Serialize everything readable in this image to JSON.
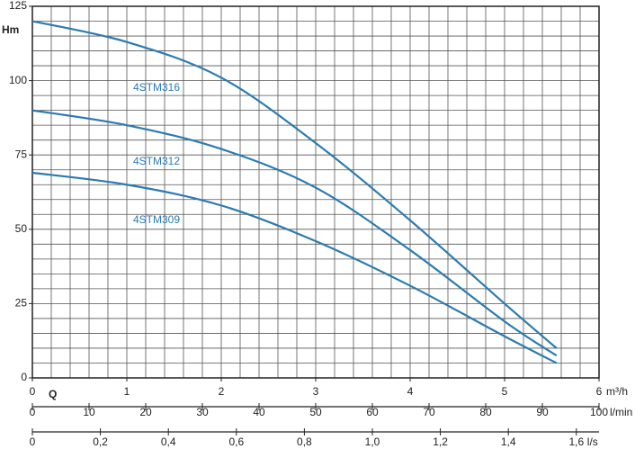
{
  "chart_data": {
    "type": "line",
    "y_label": "Hm",
    "x_label": "Q",
    "x_unit": "m³/h",
    "x": [
      0,
      1,
      2,
      3,
      4,
      5,
      5.55
    ],
    "xlim": [
      0,
      6
    ],
    "xticks": [
      0,
      1,
      2,
      3,
      4,
      5,
      6
    ],
    "ylim": [
      0,
      125
    ],
    "yticks": [
      0,
      25,
      50,
      75,
      100,
      125
    ],
    "grid": {
      "x_step": 0.2,
      "y_step": 5
    },
    "series": [
      {
        "name": "4STM316",
        "color": "#2c7bb0",
        "values": [
          120,
          113,
          101,
          79,
          53,
          25,
          10
        ]
      },
      {
        "name": "4STM312",
        "color": "#2c7bb0",
        "values": [
          90,
          85,
          77,
          64,
          43,
          19,
          7.5
        ]
      },
      {
        "name": "4STM309",
        "color": "#2c7bb0",
        "values": [
          69,
          65,
          58,
          46,
          31,
          14,
          5
        ]
      }
    ],
    "secondary_axes": [
      {
        "unit": "l/min",
        "lim": [
          0,
          100
        ],
        "ticks": [
          0,
          10,
          20,
          30,
          40,
          50,
          60,
          70,
          80,
          90,
          100
        ]
      },
      {
        "unit": "l/s",
        "lim": [
          0,
          1.6667
        ],
        "ticks": [
          0,
          {
            "value": 0.2,
            "label": "0,2"
          },
          {
            "value": 0.4,
            "label": "0,4"
          },
          {
            "value": 0.6,
            "label": "0,6"
          },
          {
            "value": 0.8,
            "label": "0,8"
          },
          {
            "value": 1.0,
            "label": "1,0"
          },
          {
            "value": 1.2,
            "label": "1,2"
          },
          {
            "value": 1.4,
            "label": "1,4"
          },
          {
            "value": 1.6,
            "label": "1,6"
          }
        ]
      }
    ]
  }
}
